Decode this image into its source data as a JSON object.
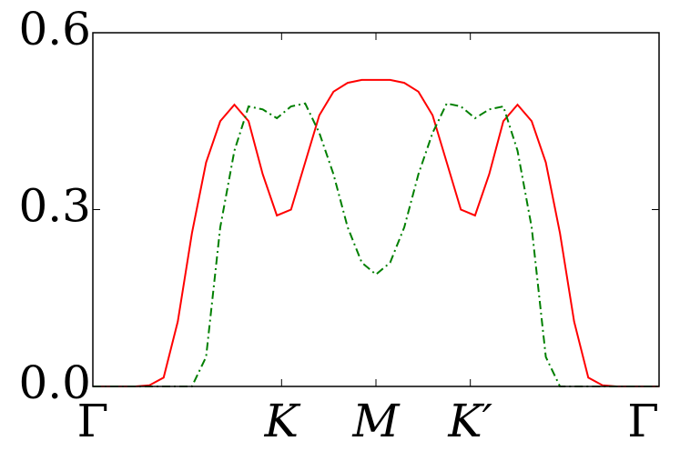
{
  "chart_data": {
    "type": "line",
    "x": [
      0,
      0.025,
      0.05,
      0.075,
      0.1,
      0.125,
      0.15,
      0.175,
      0.2,
      0.225,
      0.25,
      0.275,
      0.3,
      0.325,
      0.35,
      0.375,
      0.4,
      0.425,
      0.45,
      0.475,
      0.5,
      0.525,
      0.55,
      0.575,
      0.6,
      0.625,
      0.65,
      0.675,
      0.7,
      0.725,
      0.75,
      0.775,
      0.8,
      0.825,
      0.85,
      0.875,
      0.9,
      0.925,
      0.95,
      0.975,
      1
    ],
    "series": [
      {
        "color": "#ff0000",
        "dash": "solid",
        "values": [
          0,
          0,
          0,
          0,
          0.002,
          0.015,
          0.11,
          0.26,
          0.38,
          0.45,
          0.478,
          0.45,
          0.36,
          0.29,
          0.3,
          0.38,
          0.46,
          0.5,
          0.515,
          0.52,
          0.52,
          0.52,
          0.515,
          0.5,
          0.46,
          0.38,
          0.3,
          0.29,
          0.36,
          0.45,
          0.478,
          0.45,
          0.38,
          0.26,
          0.11,
          0.015,
          0.002,
          0,
          0,
          0,
          0
        ]
      },
      {
        "color": "#007f00",
        "dash": "dashdot",
        "values": [
          0,
          0,
          0,
          0,
          0,
          0,
          0,
          0,
          0.05,
          0.27,
          0.4,
          0.475,
          0.47,
          0.455,
          0.475,
          0.48,
          0.43,
          0.36,
          0.27,
          0.21,
          0.19,
          0.21,
          0.27,
          0.36,
          0.43,
          0.48,
          0.475,
          0.455,
          0.47,
          0.475,
          0.4,
          0.27,
          0.05,
          0,
          0,
          0,
          0,
          0,
          0,
          0,
          0
        ]
      }
    ],
    "xlim": [
      0,
      1
    ],
    "xticks": [
      {
        "value": 0,
        "label": "Γ"
      },
      {
        "value": 0.3333,
        "label": "K"
      },
      {
        "value": 0.5,
        "label": "M"
      },
      {
        "value": 0.6667,
        "label": "K′"
      },
      {
        "value": 1,
        "label": "Γ"
      }
    ],
    "ylim": [
      0,
      0.6
    ],
    "yticks": [
      {
        "value": 0,
        "label": "0.0"
      },
      {
        "value": 0.3,
        "label": "0.3"
      },
      {
        "value": 0.6,
        "label": "0.6"
      }
    ]
  }
}
